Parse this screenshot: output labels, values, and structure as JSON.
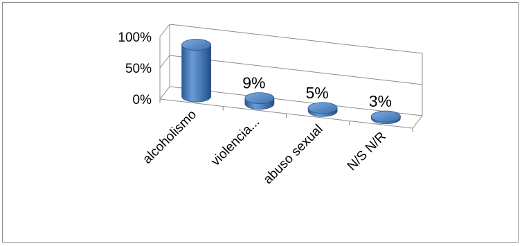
{
  "chart_data": {
    "type": "bar",
    "style": "3d-cylinder",
    "categories": [
      "alcoholismo",
      "violencia...",
      "abuso sexual",
      "N/S N/R"
    ],
    "values": [
      83,
      9,
      5,
      3
    ],
    "data_labels": [
      "",
      "9%",
      "5%",
      "3%"
    ],
    "y_ticks": [
      "0%",
      "50%",
      "100%"
    ],
    "ylim": [
      0,
      100
    ],
    "grid": true,
    "legend": "none",
    "bar_color": "#4f81bd"
  }
}
